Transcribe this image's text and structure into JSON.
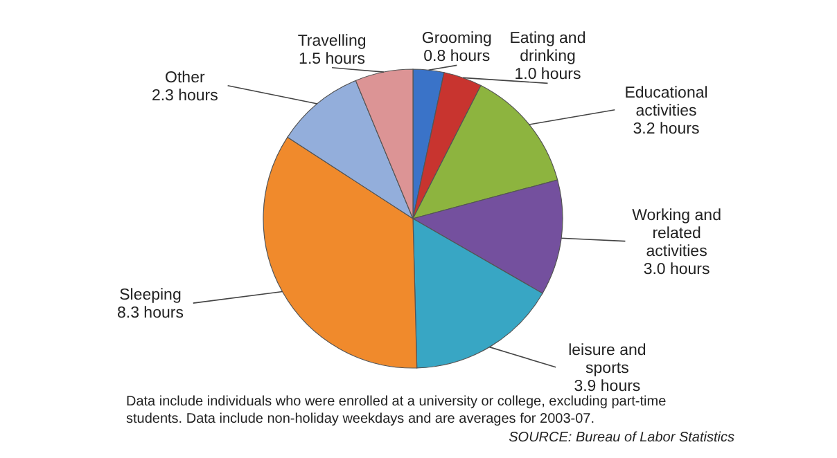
{
  "chart_data": {
    "type": "pie",
    "categories": [
      "Grooming",
      "Eating and drinking",
      "Educational activities",
      "Working and related activities",
      "leisure and sports",
      "Sleeping",
      "Other",
      "Travelling"
    ],
    "values": [
      0.8,
      1.0,
      3.2,
      3.0,
      3.9,
      8.3,
      2.3,
      1.5
    ],
    "value_labels": [
      "0.8 hours",
      "1.0 hours",
      "3.2 hours",
      "3.0 hours",
      "3.9 hours",
      "8.3 hours",
      "2.3 hours",
      "1.5 hours"
    ],
    "colors": [
      "#3a73c8",
      "#c8342f",
      "#8db43f",
      "#74509e",
      "#38a6c4",
      "#f08a2c",
      "#93aedb",
      "#dc9495"
    ],
    "annotations": [
      "Data include individuals who were enrolled at a university or college, excluding part-time students. Data include non-holiday weekdays and are averages for 2003-07.",
      "SOURCE: Bureau of Labor Statistics"
    ]
  }
}
